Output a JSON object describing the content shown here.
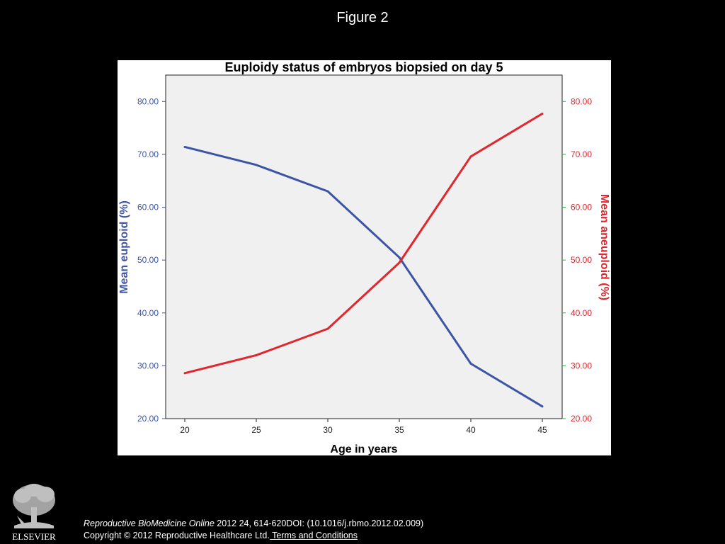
{
  "slide": {
    "title": "Figure 2"
  },
  "footer": {
    "journal": "Reproductive BioMedicine Online",
    "citation": " 2012 24, 614-620DOI: (10.1016/j.rbmo.2012.02.009)",
    "copyright": "Copyright © 2012 Reproductive Healthcare Ltd.",
    "terms_link": " Terms and Conditions"
  },
  "logo": {
    "text": "ELSEVIER"
  },
  "colors": {
    "euploid": "#3b54a6",
    "aneuploid": "#e3262e",
    "right_axis_ticks": "#2ea84a",
    "plot_bg": "#f0f0f0"
  },
  "chart_data": {
    "type": "line",
    "title": "Euploidy status of embryos biopsied on day 5",
    "xlabel": "Age in years",
    "ylabel_left": "Mean euploid (%)",
    "ylabel_right": "Mean aneuploid (%)",
    "x": [
      20,
      25,
      30,
      35,
      40,
      45
    ],
    "x_tick_labels": [
      "20",
      "25",
      "30",
      "35",
      "40",
      "45"
    ],
    "ylim": [
      20,
      85
    ],
    "y_tick_values": [
      20,
      30,
      40,
      50,
      60,
      70,
      80
    ],
    "y_tick_labels": [
      "20.00",
      "30.00",
      "40.00",
      "50.00",
      "60.00",
      "70.00",
      "80.00"
    ],
    "grid": false,
    "series": [
      {
        "name": "Mean euploid (%)",
        "axis": "left",
        "values": [
          71.4,
          68.0,
          63.0,
          50.5,
          30.4,
          22.3
        ]
      },
      {
        "name": "Mean aneuploid (%)",
        "axis": "right",
        "values": [
          28.6,
          32.0,
          37.0,
          49.5,
          69.6,
          77.7
        ]
      }
    ]
  }
}
